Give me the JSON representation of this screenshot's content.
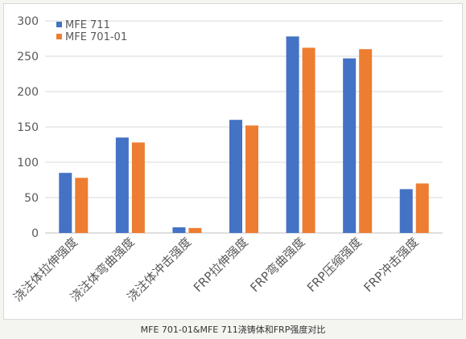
{
  "chart_data": {
    "type": "bar",
    "title": "",
    "xlabel": "",
    "ylabel": "",
    "categories": [
      "浇注体拉伸强度",
      "浇注体弯曲强度",
      "浇注体冲击强度",
      "FRP拉伸强度",
      "FRP弯曲强度",
      "FRP压缩强度",
      "FRP冲击强度"
    ],
    "series": [
      {
        "name": "MFE 711",
        "color": "#4472c4",
        "values": [
          85,
          135,
          8,
          160,
          278,
          247,
          62
        ]
      },
      {
        "name": "MFE 701-01",
        "color": "#ed7d31",
        "values": [
          78,
          128,
          7,
          152,
          262,
          260,
          70
        ]
      }
    ],
    "ylim": [
      0,
      300
    ],
    "yticks": [
      0,
      50,
      100,
      150,
      200,
      250,
      300
    ],
    "grid": true,
    "legend_position": "top-left"
  },
  "caption": "MFE 701-01&MFE 711浇铸体和FRP强度对比"
}
